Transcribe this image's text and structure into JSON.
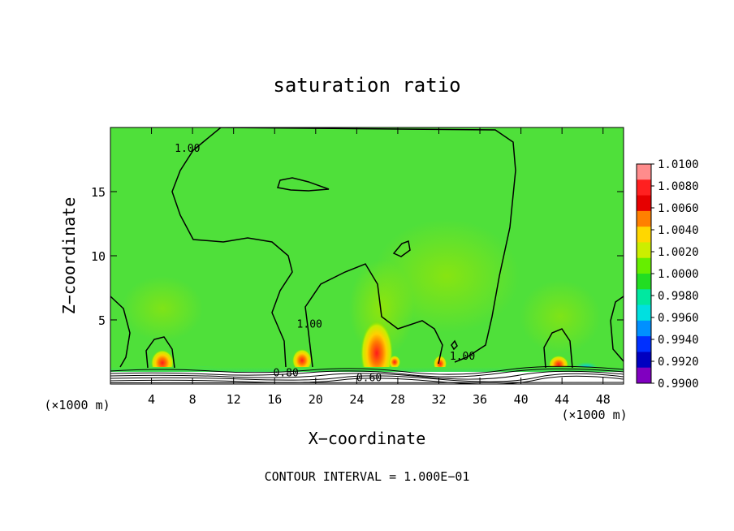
{
  "chart_data": {
    "type": "heatmap",
    "title": "saturation ratio",
    "xlabel": "X−coordinate",
    "ylabel": "Z−coordinate",
    "x_unit_left": "(×1000 m)",
    "x_unit_right": "(×1000 m)",
    "xlim": [
      0,
      50
    ],
    "ylim": [
      0,
      20
    ],
    "x_ticks": [
      4,
      8,
      12,
      16,
      20,
      24,
      28,
      32,
      36,
      40,
      44,
      48
    ],
    "y_ticks": [
      5,
      10,
      15
    ],
    "footer": "CONTOUR INTERVAL = 1.000E−01",
    "colorbar": {
      "levels": [
        "1.0100",
        "1.0080",
        "1.0060",
        "1.0040",
        "1.0020",
        "1.0000",
        "0.9980",
        "0.9960",
        "0.9940",
        "0.9920",
        "0.9900"
      ],
      "colors": [
        "#ff8c8c",
        "#ff2020",
        "#e60000",
        "#ff8000",
        "#ffd700",
        "#ccee00",
        "#66ee00",
        "#22dd22",
        "#00e8a0",
        "#00e0e0",
        "#0090ff",
        "#0030ff",
        "#0000c0",
        "#8000c0"
      ],
      "background_color": "#4fe03a"
    },
    "contour_labels": [
      {
        "text": "1.00",
        "x": 7.5,
        "y": 18.3
      },
      {
        "text": "1.00",
        "x": 19.4,
        "y": 4.6
      },
      {
        "text": "1.00",
        "x": 34.3,
        "y": 2.1
      },
      {
        "text": "0.80",
        "x": 17.1,
        "y": 0.8
      },
      {
        "text": "0.60",
        "x": 25.2,
        "y": 0.4
      }
    ]
  }
}
